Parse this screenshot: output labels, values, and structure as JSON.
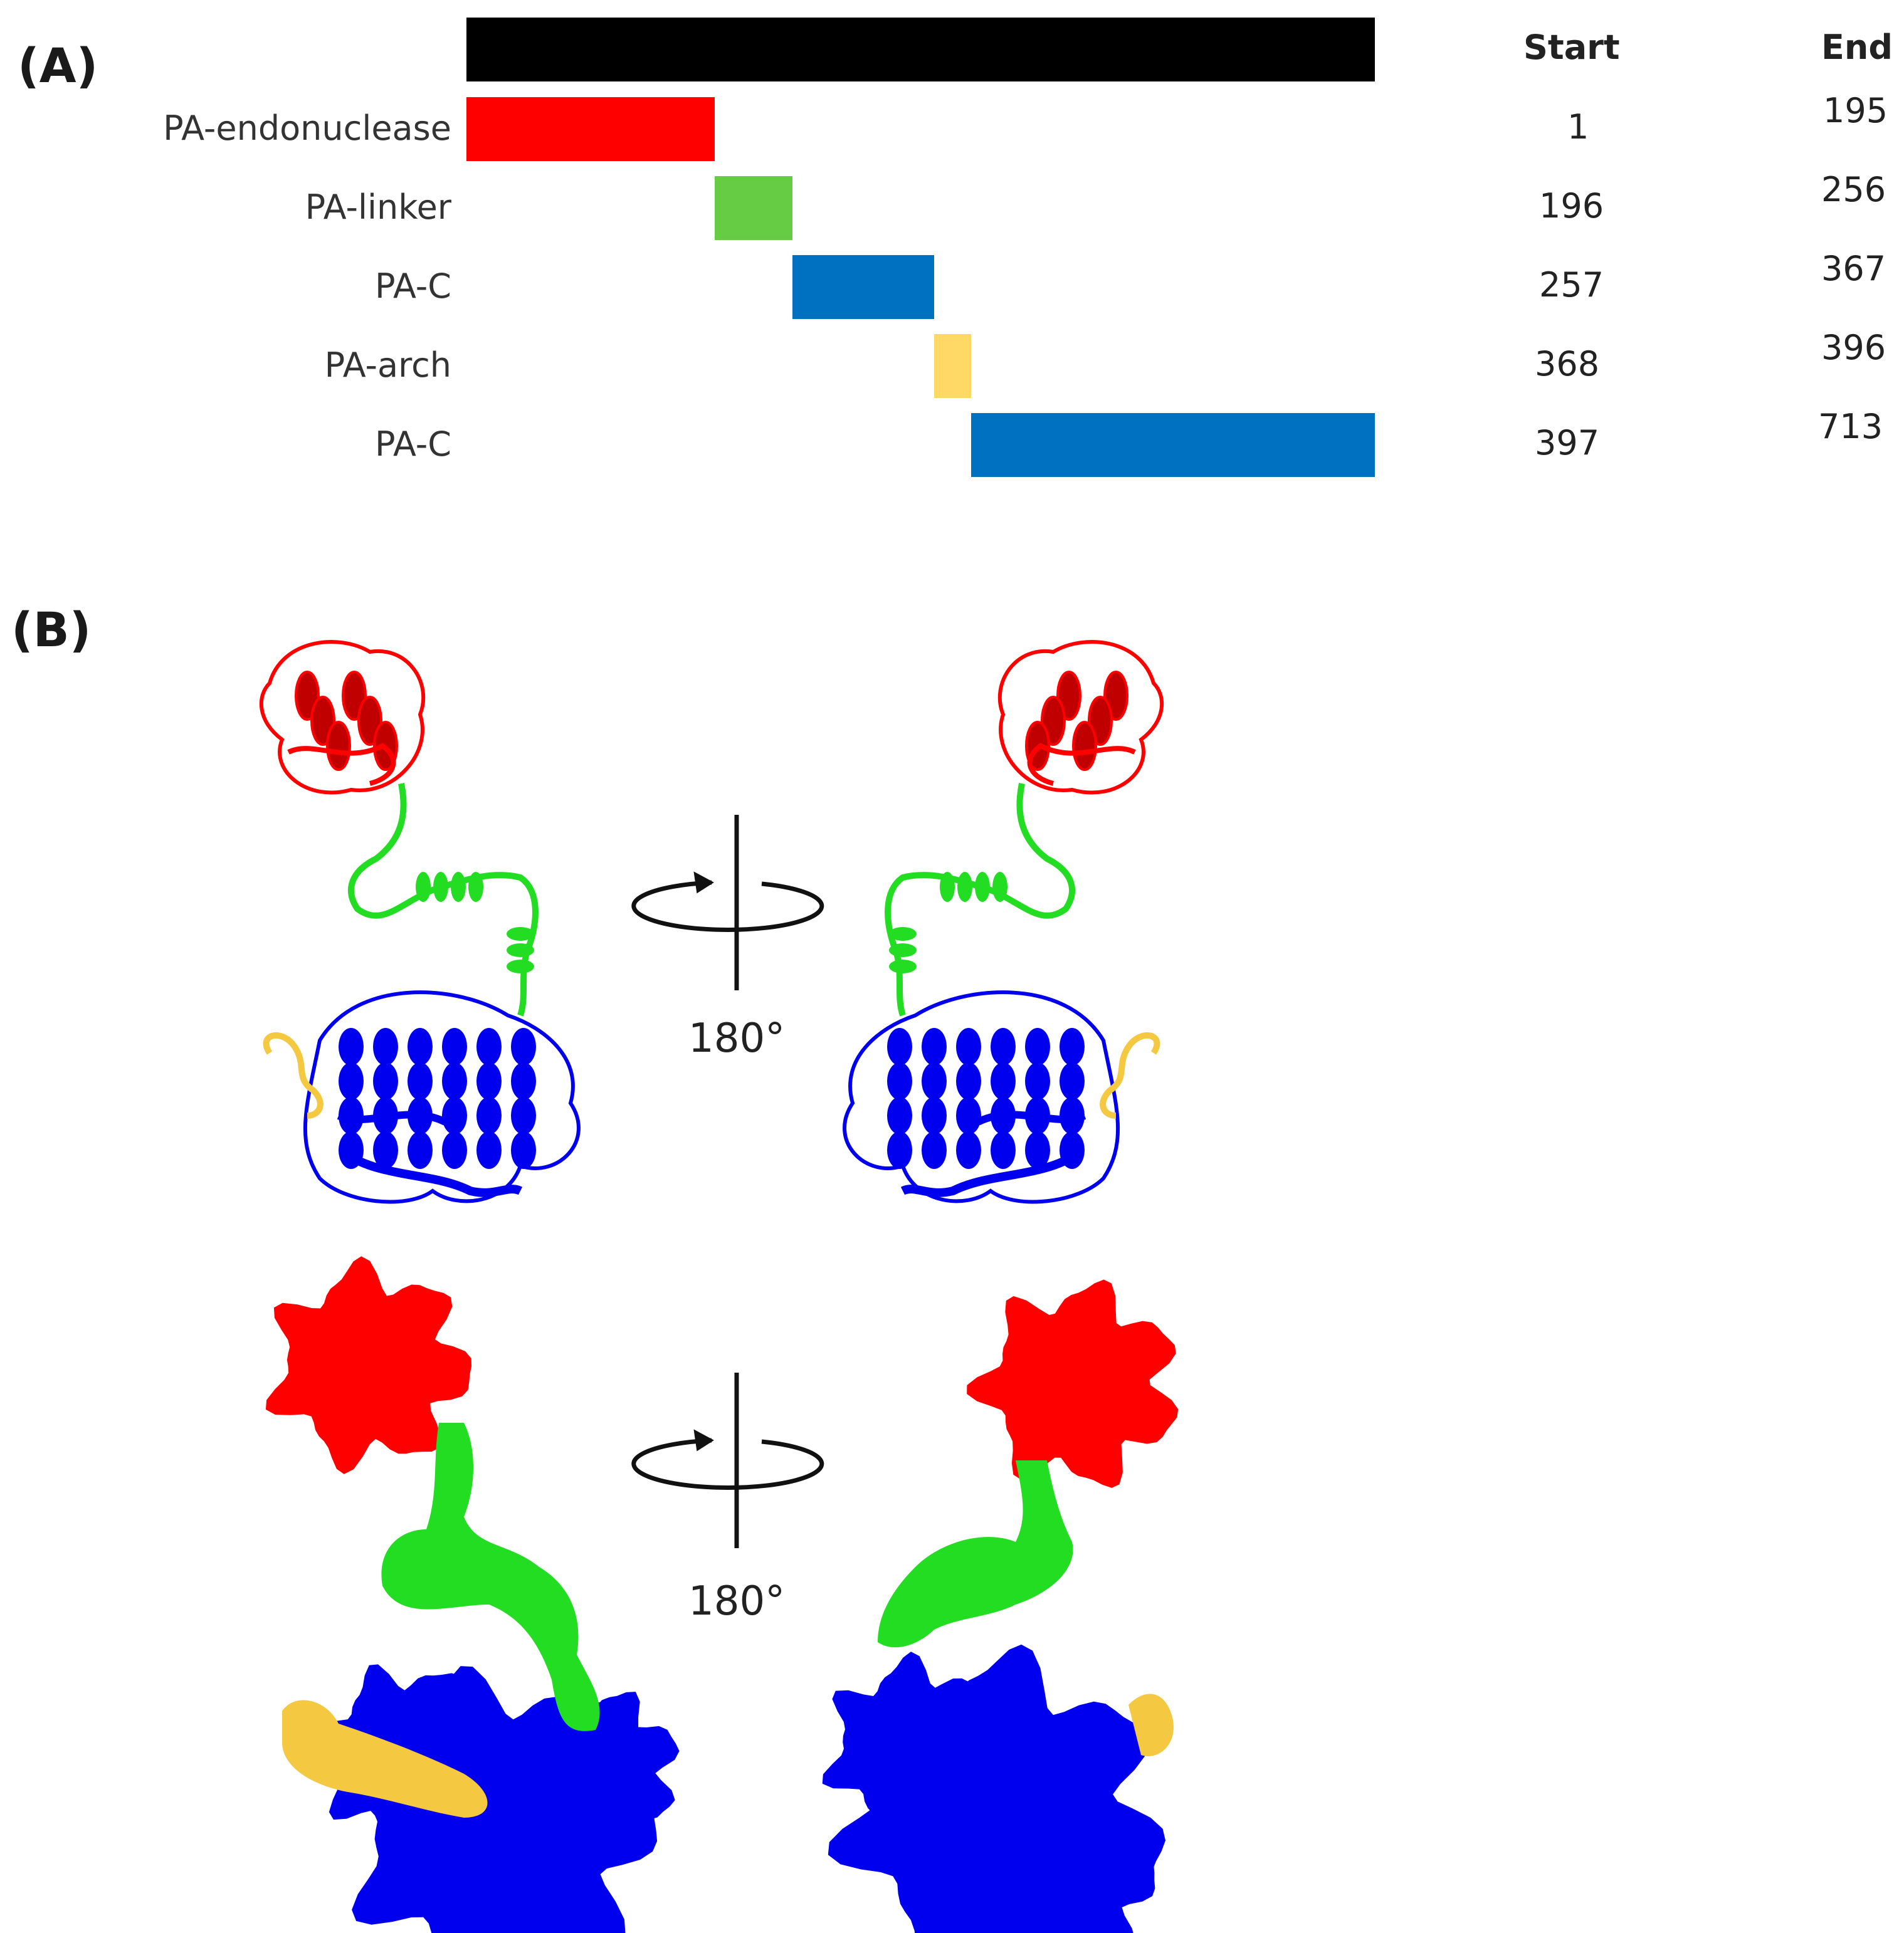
{
  "panel_a": {
    "label": "(A)",
    "headers": {
      "start": "Start",
      "end": "End"
    },
    "full_length": {
      "start": 1,
      "end": 713,
      "color": "#000000"
    },
    "domains": [
      {
        "name": "PA-endonuclease",
        "start": "1",
        "end": "195",
        "s": 1,
        "e": 195,
        "color": "#ff0000"
      },
      {
        "name": "PA-linker",
        "start": "196",
        "end": "256",
        "s": 196,
        "e": 256,
        "color": "#66cc44"
      },
      {
        "name": "PA-C",
        "start": "257",
        "end": "367",
        "s": 257,
        "e": 367,
        "color": "#0070c0"
      },
      {
        "name": "PA-arch",
        "start": "368",
        "end": "396",
        "s": 368,
        "e": 396,
        "color": "#ffd966"
      },
      {
        "name": "PA-C",
        "start": "397",
        "end": "713",
        "s": 397,
        "e": 713,
        "color": "#0070c0"
      }
    ]
  },
  "panel_b": {
    "label": "(B)",
    "rotation_top": "180°",
    "rotation_bottom": "180°",
    "colors": {
      "endonuclease": "#ff0000",
      "linker": "#22dd22",
      "pac": "#0000ee",
      "arch": "#f5c842"
    }
  }
}
